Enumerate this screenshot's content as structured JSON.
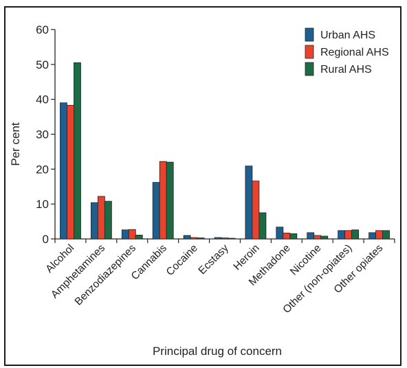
{
  "chart_data": {
    "type": "bar",
    "title": "",
    "xlabel": "Principal drug of concern",
    "ylabel": "Per cent",
    "ylim": [
      0,
      60
    ],
    "yticks": [
      0,
      10,
      20,
      30,
      40,
      50,
      60
    ],
    "grid": false,
    "legend_position": "top-right",
    "categories": [
      "Alcohol",
      "Amphetamines",
      "Benzodiazepines",
      "Cannabis",
      "Cocaine",
      "Ecstasy",
      "Heroin",
      "Methadone",
      "Nicotine",
      "Other (non-opiates)",
      "Other opiates"
    ],
    "series": [
      {
        "name": "Urban AHS",
        "color": "#1f5f8f",
        "values": [
          39,
          10.4,
          2.6,
          16.2,
          1.0,
          0.4,
          20.9,
          3.4,
          1.8,
          2.4,
          1.8
        ]
      },
      {
        "name": "Regional AHS",
        "color": "#e8432c",
        "values": [
          38.3,
          12.2,
          2.7,
          22.2,
          0.4,
          0.3,
          16.6,
          1.7,
          1.0,
          2.4,
          2.4
        ]
      },
      {
        "name": "Rural AHS",
        "color": "#1c6b45",
        "values": [
          50.5,
          10.8,
          1.1,
          22.0,
          0.3,
          0.2,
          7.5,
          1.5,
          0.8,
          2.6,
          2.4
        ]
      }
    ]
  }
}
